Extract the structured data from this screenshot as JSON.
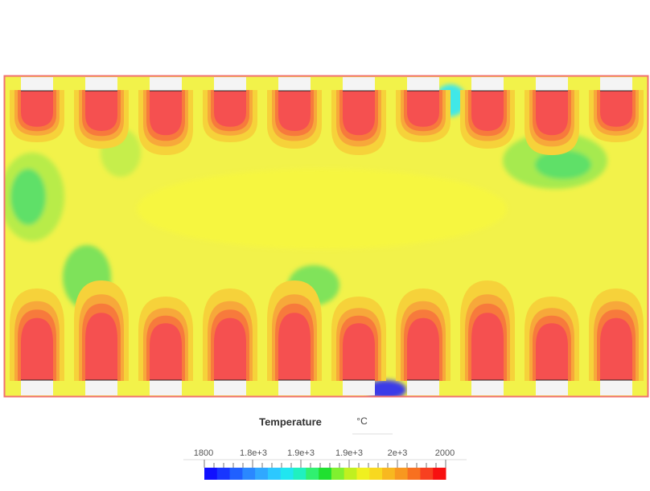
{
  "legend": {
    "title": "Temperature",
    "unit": "°C",
    "tick_labels": [
      "1800",
      "1.8e+3",
      "1.9e+3",
      "1.9e+3",
      "2e+3",
      "2000"
    ]
  }
}
